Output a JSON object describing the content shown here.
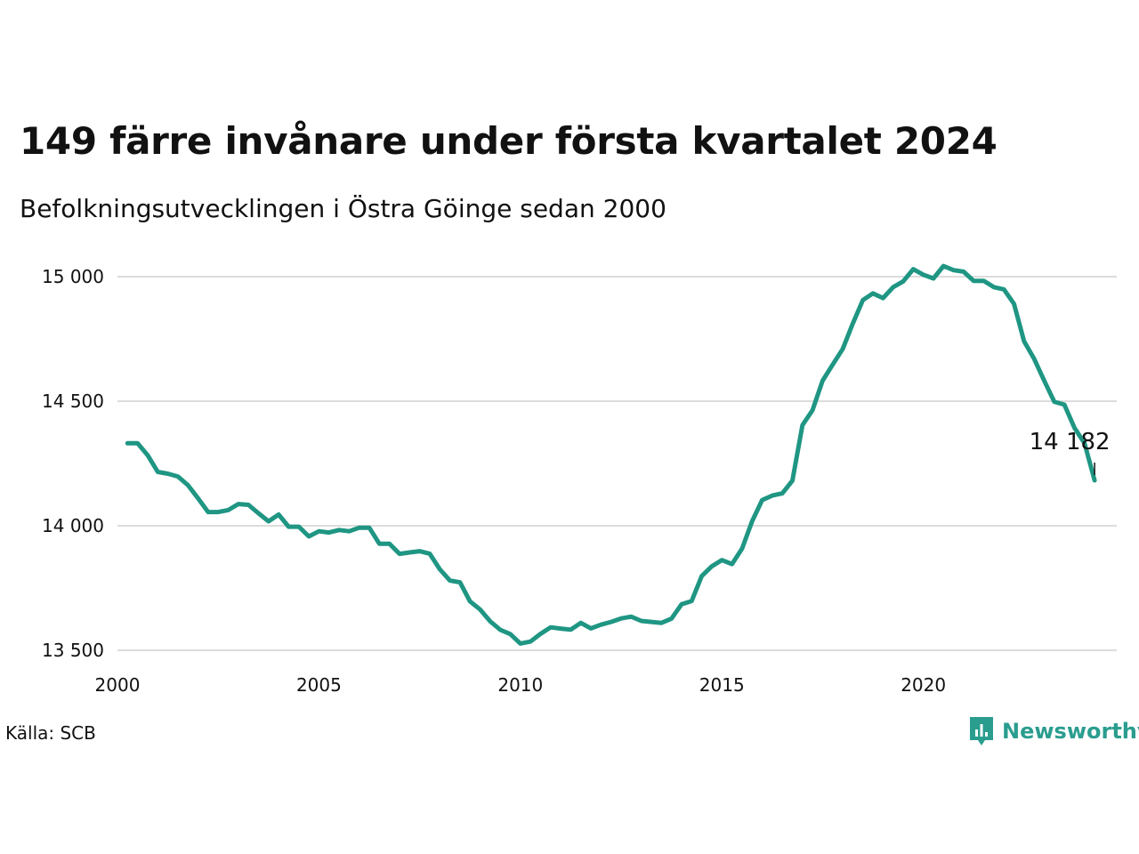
{
  "title": "149 färre invånare under första kvartalet 2024",
  "subtitle": "Befolkningsutvecklingen i Östra Göinge sedan 2000",
  "source": "Källa: SCB",
  "brand": {
    "name": "Newsworthy",
    "icon": "newsworthy-logo-icon",
    "color": "#2a9d8f"
  },
  "line_color": "#1f9683",
  "chart_data": {
    "type": "line",
    "title": "149 färre invånare under första kvartalet 2024",
    "subtitle": "Befolkningsutvecklingen i Östra Göinge sedan 2000",
    "xlabel": "",
    "ylabel": "",
    "xlim": [
      2000,
      2024.8
    ],
    "ylim": [
      13500,
      15000
    ],
    "x_ticks": [
      2000,
      2005,
      2010,
      2015,
      2020
    ],
    "x_tick_labels": [
      "2000",
      "2005",
      "2010",
      "2015",
      "2020"
    ],
    "y_ticks": [
      13500,
      14000,
      14500,
      15000
    ],
    "y_tick_labels": [
      "13 500",
      "14 000",
      "14 500",
      "15 000"
    ],
    "grid": "horizontal",
    "end_label": "14 182",
    "series": [
      {
        "x": [
          2000.25,
          2000.5,
          2000.75,
          2001.0,
          2001.25,
          2001.5,
          2001.75,
          2002.0,
          2002.25,
          2002.5,
          2002.75,
          2003.0,
          2003.25,
          2003.5,
          2003.75,
          2004.0,
          2004.25,
          2004.5,
          2004.75,
          2005.0,
          2005.25,
          2005.5,
          2005.75,
          2006.0,
          2006.25,
          2006.5,
          2006.75,
          2007.0,
          2007.25,
          2007.5,
          2007.75,
          2008.0,
          2008.25,
          2008.5,
          2008.75,
          2009.0,
          2009.25,
          2009.5,
          2009.75,
          2010.0,
          2010.25,
          2010.5,
          2010.75,
          2011.0,
          2011.25,
          2011.5,
          2011.75,
          2012.0,
          2012.25,
          2012.5,
          2012.75,
          2013.0,
          2013.25,
          2013.5,
          2013.75,
          2014.0,
          2014.25,
          2014.5,
          2014.75,
          2015.0,
          2015.25,
          2015.5,
          2015.75,
          2016.0,
          2016.25,
          2016.5,
          2016.75,
          2017.0,
          2017.25,
          2017.5,
          2017.75,
          2018.0,
          2018.25,
          2018.5,
          2018.75,
          2019.0,
          2019.25,
          2019.5,
          2019.75,
          2020.0,
          2020.25,
          2020.5,
          2020.75,
          2021.0,
          2021.25,
          2021.5,
          2021.75,
          2022.0,
          2022.25,
          2022.5,
          2022.75,
          2023.0,
          2023.25,
          2023.5,
          2023.75,
          2024.0,
          2024.25
        ],
        "values": [
          14331,
          14331,
          14283,
          14216,
          14209,
          14198,
          14163,
          14110,
          14055,
          14055,
          14063,
          14087,
          14084,
          14050,
          14018,
          14045,
          13996,
          13996,
          13957,
          13978,
          13973,
          13983,
          13978,
          13992,
          13992,
          13928,
          13928,
          13887,
          13893,
          13898,
          13888,
          13825,
          13780,
          13773,
          13696,
          13664,
          13616,
          13582,
          13565,
          13527,
          13535,
          13566,
          13592,
          13587,
          13583,
          13610,
          13588,
          13603,
          13614,
          13628,
          13635,
          13618,
          13614,
          13610,
          13627,
          13685,
          13698,
          13798,
          13837,
          13862,
          13846,
          13908,
          14018,
          14103,
          14121,
          14130,
          14181,
          14404,
          14464,
          14582,
          14647,
          14710,
          14812,
          14906,
          14933,
          14914,
          14958,
          14981,
          15030,
          15008,
          14993,
          15043,
          15026,
          15020,
          14983,
          14983,
          14958,
          14949,
          14891,
          14740,
          14670,
          14582,
          14498,
          14486,
          14393,
          14331,
          14182
        ]
      }
    ]
  }
}
